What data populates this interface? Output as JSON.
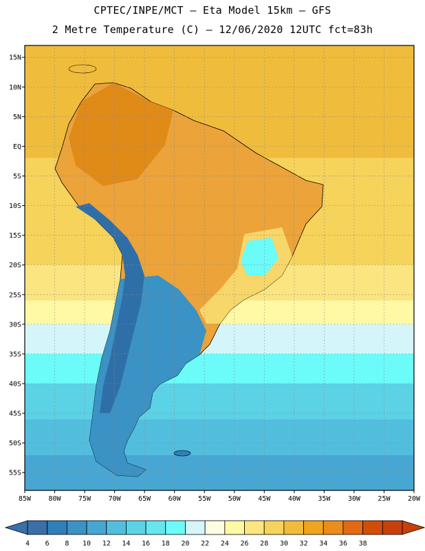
{
  "header": {
    "line1": "CPTEC/INPE/MCT –  Eta Model 15km – GFS",
    "line2": "2 Metre Temperature (C) – 12/06/2020 12UTC fct=83h"
  },
  "map": {
    "lon_range": [
      -85,
      -20
    ],
    "lat_range": [
      -58,
      17
    ],
    "lon_ticks": [
      "85W",
      "80W",
      "75W",
      "70W",
      "65W",
      "60W",
      "55W",
      "50W",
      "45W",
      "40W",
      "35W",
      "30W",
      "25W",
      "20W"
    ],
    "lat_ticks": [
      "15N",
      "10N",
      "5N",
      "EQ",
      "5S",
      "10S",
      "15S",
      "20S",
      "25S",
      "30S",
      "35S",
      "40S",
      "45S",
      "50S",
      "55S"
    ],
    "gridlines": true,
    "ocean_temperature_bands": [
      {
        "lat_north": 17,
        "lat_south": -2,
        "value": 28
      },
      {
        "lat_north": -2,
        "lat_south": -20,
        "value": 26
      },
      {
        "lat_north": -20,
        "lat_south": -26,
        "value": 24
      },
      {
        "lat_north": -26,
        "lat_south": -30,
        "value": 22
      },
      {
        "lat_north": -30,
        "lat_south": -35,
        "value": 18
      },
      {
        "lat_north": -35,
        "lat_south": -40,
        "value": 16
      },
      {
        "lat_north": -40,
        "lat_south": -46,
        "value": 12
      },
      {
        "lat_north": -46,
        "lat_south": -52,
        "value": 10
      },
      {
        "lat_north": -52,
        "lat_south": -58,
        "value": 8
      }
    ]
  },
  "colorbar": {
    "labels": [
      "4",
      "6",
      "8",
      "10",
      "12",
      "14",
      "16",
      "18",
      "20",
      "22",
      "24",
      "26",
      "28",
      "30",
      "32",
      "34",
      "36",
      "38"
    ],
    "colors": [
      "#3a6fa8",
      "#2f7fb8",
      "#3a92c5",
      "#47a7d2",
      "#52bede",
      "#5cd2e6",
      "#64e7ef",
      "#6bfbf8",
      "#d4f6fb",
      "#fffbe2",
      "#fff8a4",
      "#fbe580",
      "#f6d35a",
      "#f0bc3c",
      "#efa41c",
      "#eb8c1c",
      "#e26a10",
      "#d24e08",
      "#c8400c"
    ],
    "left_arrow_color": "#3a6fa8",
    "right_arrow_color": "#c8400c"
  }
}
